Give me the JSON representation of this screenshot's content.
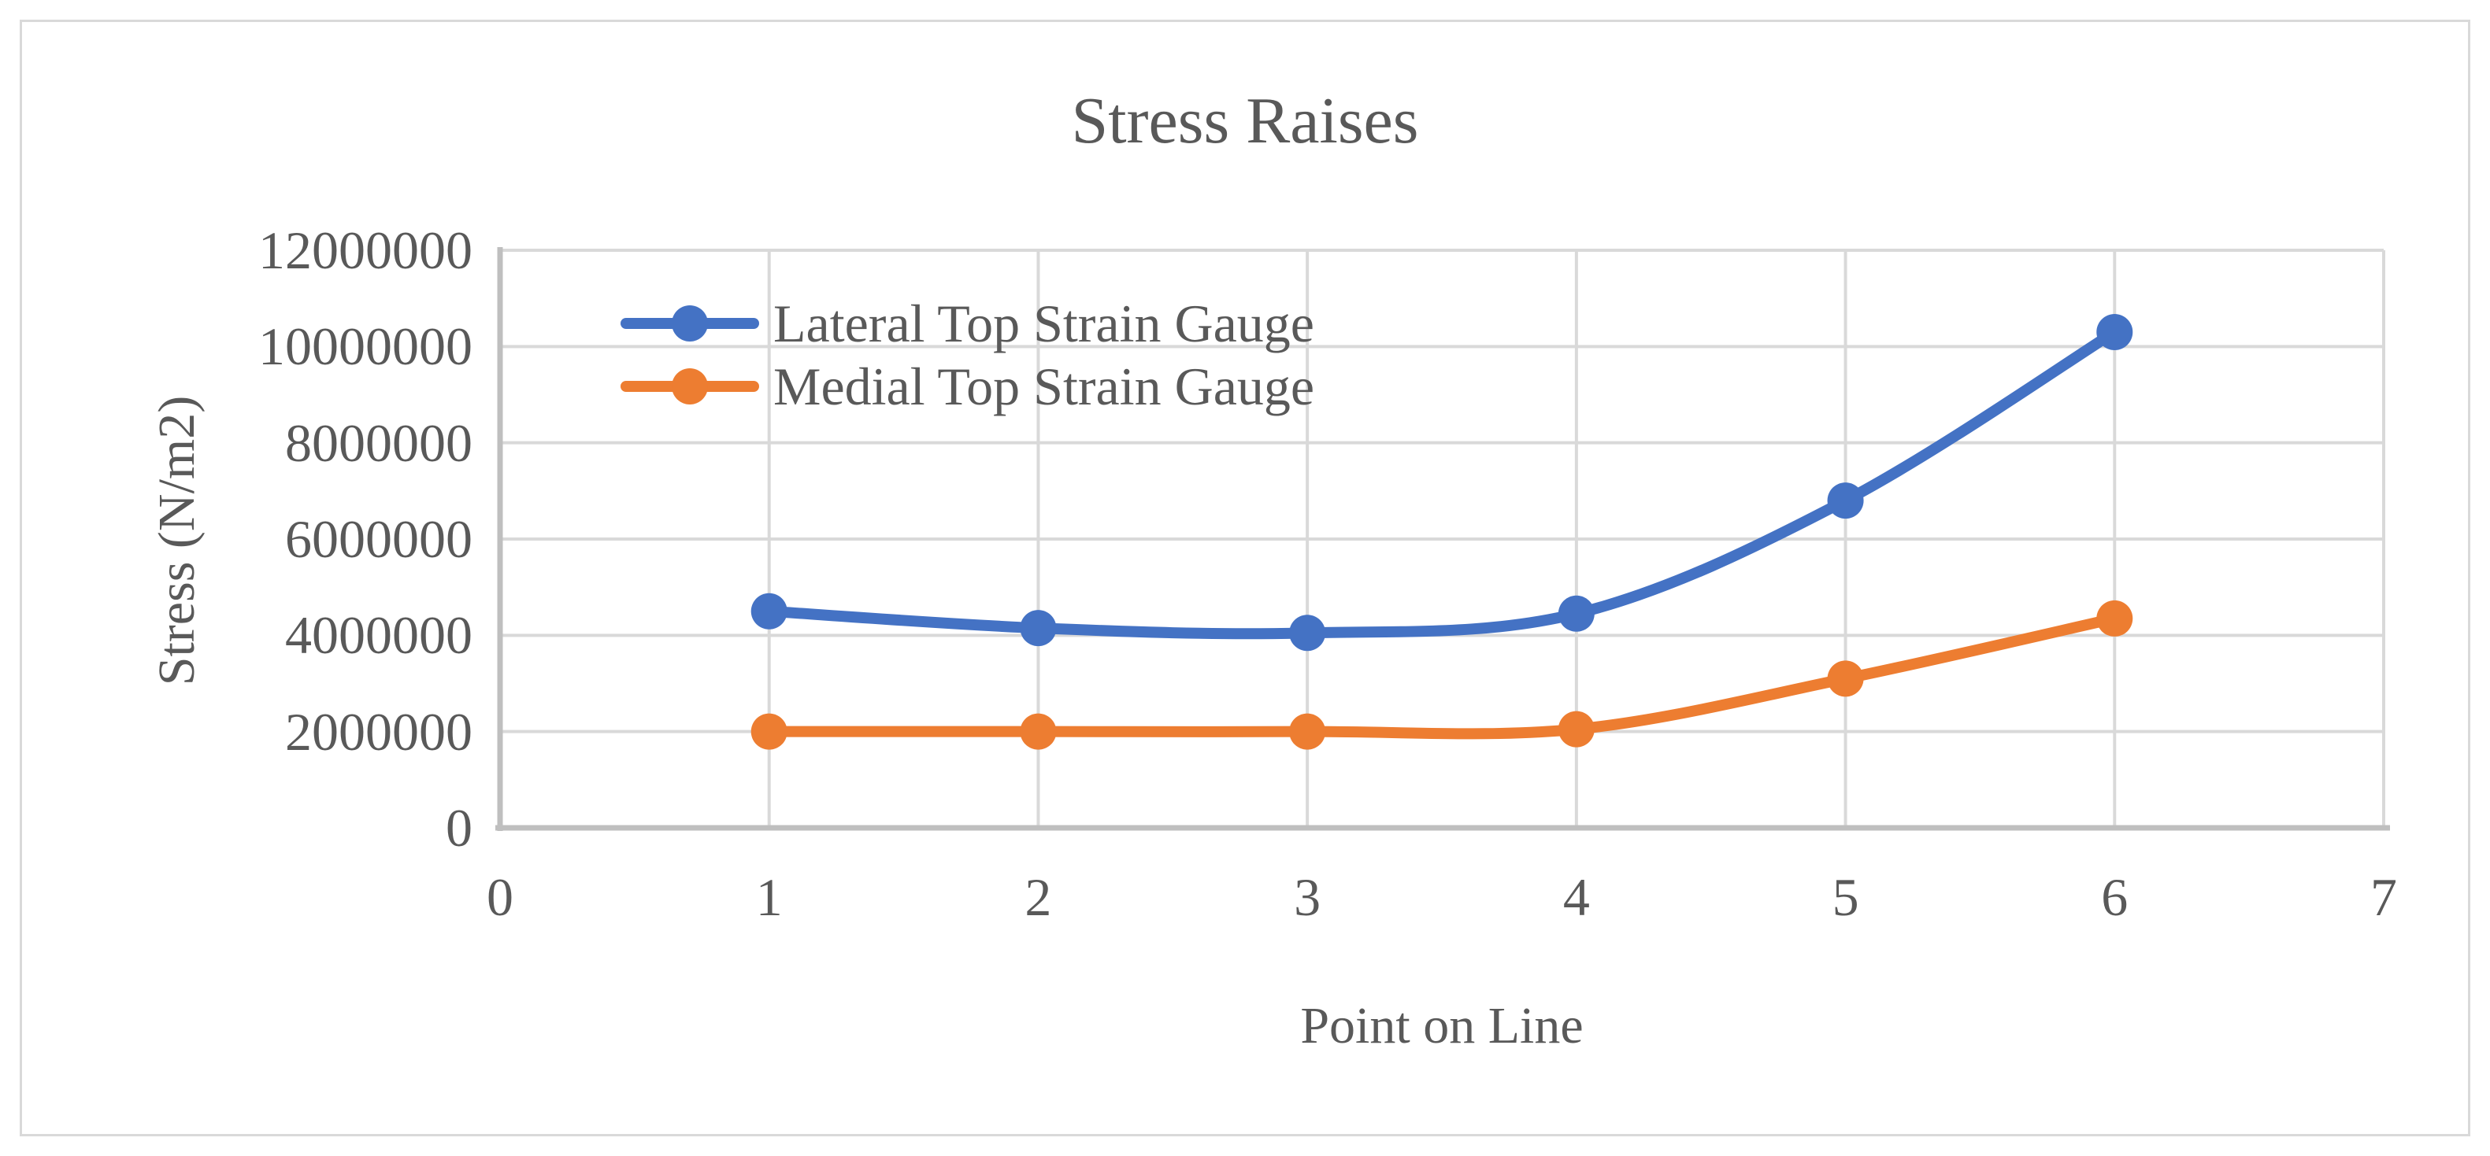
{
  "chart_data": {
    "type": "line",
    "title": "Stress Raises",
    "xlabel": "Point on Line",
    "ylabel": "Stress (N/m2)",
    "x": [
      1,
      2,
      3,
      4,
      5,
      6
    ],
    "series": [
      {
        "name": "Lateral Top Strain Gauge",
        "color": "#4472C4",
        "values": [
          4500000,
          4150000,
          4050000,
          4450000,
          6800000,
          10300000
        ]
      },
      {
        "name": "Medial Top Strain Gauge",
        "color": "#ED7D31",
        "values": [
          2000000,
          2000000,
          2000000,
          2050000,
          3100000,
          4350000
        ]
      }
    ],
    "xlim": [
      0,
      7
    ],
    "ylim": [
      0,
      12000000
    ],
    "x_ticks": [
      0,
      1,
      2,
      3,
      4,
      5,
      6,
      7
    ],
    "y_ticks": [
      0,
      2000000,
      4000000,
      6000000,
      8000000,
      10000000,
      12000000
    ],
    "grid": true,
    "smooth": true,
    "legend_position": "inside-top-left",
    "marker": "circle"
  },
  "colors": {
    "text": "#595959",
    "gridline": "#D9D9D9",
    "axis_line": "#BFBFBF",
    "series_lateral": "#4472C4",
    "series_medial": "#ED7D31",
    "background": "#FFFFFF",
    "chart_border": "#D9D9D9"
  }
}
